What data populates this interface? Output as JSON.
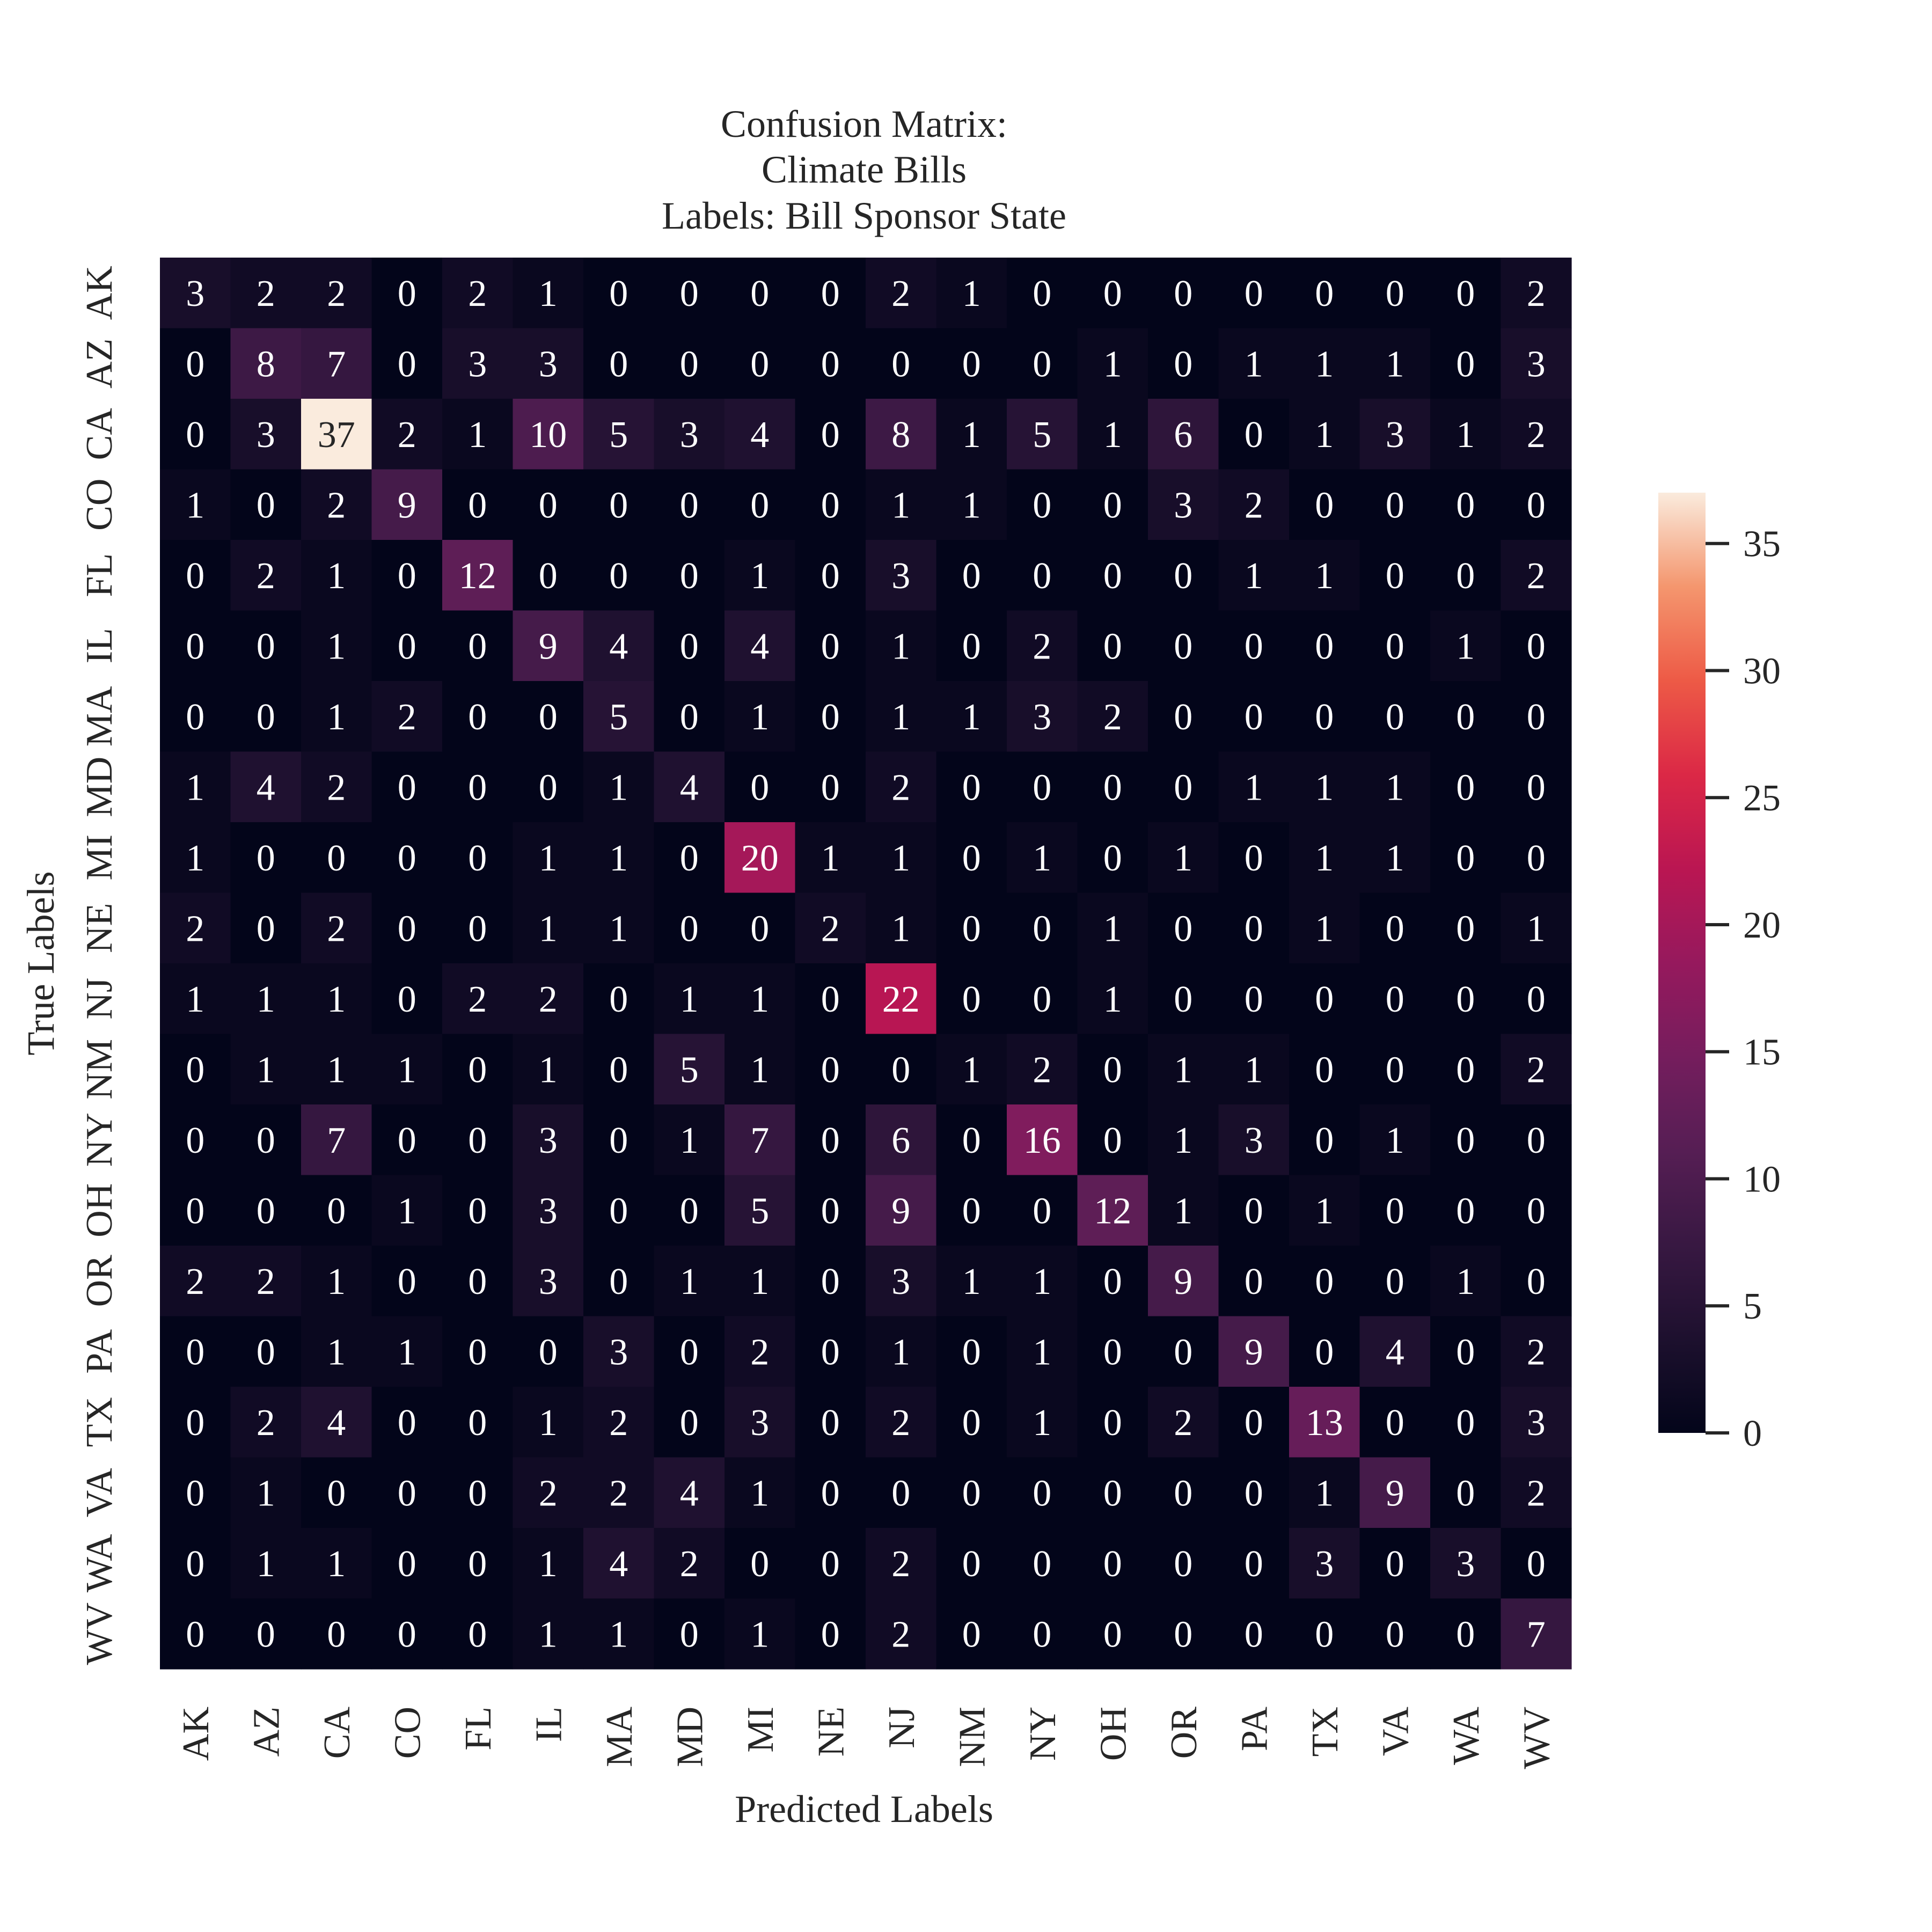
{
  "chart_data": {
    "type": "heatmap",
    "title": [
      "Confusion Matrix:",
      "Climate Bills",
      "Labels: Bill Sponsor State"
    ],
    "xlabel": "Predicted Labels",
    "ylabel": "True Labels",
    "x_categories": [
      "AK",
      "AZ",
      "CA",
      "CO",
      "FL",
      "IL",
      "MA",
      "MD",
      "MI",
      "NE",
      "NJ",
      "NM",
      "NY",
      "OH",
      "OR",
      "PA",
      "TX",
      "VA",
      "WA",
      "WV"
    ],
    "y_categories": [
      "AK",
      "AZ",
      "CA",
      "CO",
      "FL",
      "IL",
      "MA",
      "MD",
      "MI",
      "NE",
      "NJ",
      "NM",
      "NY",
      "OH",
      "OR",
      "PA",
      "TX",
      "VA",
      "WA",
      "WV"
    ],
    "values": [
      [
        3,
        2,
        2,
        0,
        2,
        1,
        0,
        0,
        0,
        0,
        2,
        1,
        0,
        0,
        0,
        0,
        0,
        0,
        0,
        2
      ],
      [
        0,
        8,
        7,
        0,
        3,
        3,
        0,
        0,
        0,
        0,
        0,
        0,
        0,
        1,
        0,
        1,
        1,
        1,
        0,
        3
      ],
      [
        0,
        3,
        37,
        2,
        1,
        10,
        5,
        3,
        4,
        0,
        8,
        1,
        5,
        1,
        6,
        0,
        1,
        3,
        1,
        2
      ],
      [
        1,
        0,
        2,
        9,
        0,
        0,
        0,
        0,
        0,
        0,
        1,
        1,
        0,
        0,
        3,
        2,
        0,
        0,
        0,
        0
      ],
      [
        0,
        2,
        1,
        0,
        12,
        0,
        0,
        0,
        1,
        0,
        3,
        0,
        0,
        0,
        0,
        1,
        1,
        0,
        0,
        2
      ],
      [
        0,
        0,
        1,
        0,
        0,
        9,
        4,
        0,
        4,
        0,
        1,
        0,
        2,
        0,
        0,
        0,
        0,
        0,
        1,
        0
      ],
      [
        0,
        0,
        1,
        2,
        0,
        0,
        5,
        0,
        1,
        0,
        1,
        1,
        3,
        2,
        0,
        0,
        0,
        0,
        0,
        0
      ],
      [
        1,
        4,
        2,
        0,
        0,
        0,
        1,
        4,
        0,
        0,
        2,
        0,
        0,
        0,
        0,
        1,
        1,
        1,
        0,
        0
      ],
      [
        1,
        0,
        0,
        0,
        0,
        1,
        1,
        0,
        20,
        1,
        1,
        0,
        1,
        0,
        1,
        0,
        1,
        1,
        0,
        0
      ],
      [
        2,
        0,
        2,
        0,
        0,
        1,
        1,
        0,
        0,
        2,
        1,
        0,
        0,
        1,
        0,
        0,
        1,
        0,
        0,
        1
      ],
      [
        1,
        1,
        1,
        0,
        2,
        2,
        0,
        1,
        1,
        0,
        22,
        0,
        0,
        1,
        0,
        0,
        0,
        0,
        0,
        0
      ],
      [
        0,
        1,
        1,
        1,
        0,
        1,
        0,
        5,
        1,
        0,
        0,
        1,
        2,
        0,
        1,
        1,
        0,
        0,
        0,
        2
      ],
      [
        0,
        0,
        7,
        0,
        0,
        3,
        0,
        1,
        7,
        0,
        6,
        0,
        16,
        0,
        1,
        3,
        0,
        1,
        0,
        0
      ],
      [
        0,
        0,
        0,
        1,
        0,
        3,
        0,
        0,
        5,
        0,
        9,
        0,
        0,
        12,
        1,
        0,
        1,
        0,
        0,
        0
      ],
      [
        2,
        2,
        1,
        0,
        0,
        3,
        0,
        1,
        1,
        0,
        3,
        1,
        1,
        0,
        9,
        0,
        0,
        0,
        1,
        0
      ],
      [
        0,
        0,
        1,
        1,
        0,
        0,
        3,
        0,
        2,
        0,
        1,
        0,
        1,
        0,
        0,
        9,
        0,
        4,
        0,
        2
      ],
      [
        0,
        2,
        4,
        0,
        0,
        1,
        2,
        0,
        3,
        0,
        2,
        0,
        1,
        0,
        2,
        0,
        13,
        0,
        0,
        3
      ],
      [
        0,
        1,
        0,
        0,
        0,
        2,
        2,
        4,
        1,
        0,
        0,
        0,
        0,
        0,
        0,
        0,
        1,
        9,
        0,
        2
      ],
      [
        0,
        1,
        1,
        0,
        0,
        1,
        4,
        2,
        0,
        0,
        2,
        0,
        0,
        0,
        0,
        0,
        3,
        0,
        3,
        0
      ],
      [
        0,
        0,
        0,
        0,
        0,
        1,
        1,
        0,
        1,
        0,
        2,
        0,
        0,
        0,
        0,
        0,
        0,
        0,
        0,
        7
      ]
    ],
    "vmin": 0,
    "vmax": 37,
    "colormap": "rocket",
    "colorbar_ticks": [
      0,
      5,
      10,
      15,
      20,
      25,
      30,
      35
    ],
    "grid": false,
    "colors": {
      "low": "#03051a",
      "high": "#faebdd",
      "annot_light": "#ffffff",
      "annot_dark": "#262626"
    }
  }
}
